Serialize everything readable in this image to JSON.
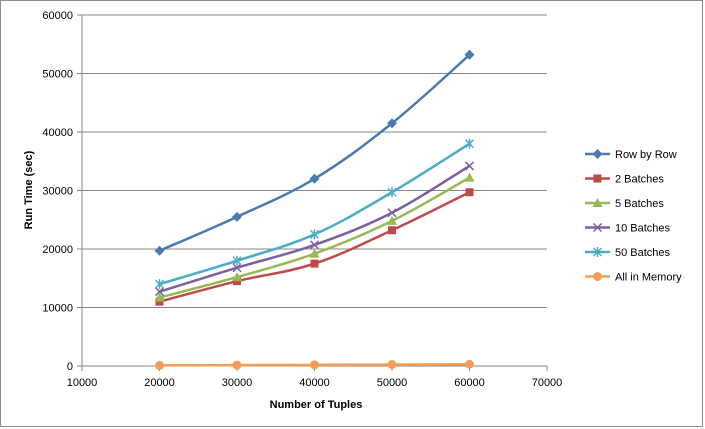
{
  "chart_data": {
    "type": "line",
    "title": "",
    "xlabel": "Number of Tuples",
    "ylabel": "Run Time (sec)",
    "xlim": [
      10000,
      70000
    ],
    "ylim": [
      0,
      60000
    ],
    "xticks": [
      10000,
      20000,
      30000,
      40000,
      50000,
      60000,
      70000
    ],
    "yticks": [
      0,
      10000,
      20000,
      30000,
      40000,
      50000,
      60000
    ],
    "grid": "horizontal",
    "legend_position": "right",
    "x": [
      20000,
      30000,
      40000,
      50000,
      60000
    ],
    "series": [
      {
        "name": "Row by Row",
        "color": "#4a7ab0",
        "marker": "diamond",
        "values": [
          19700,
          25500,
          32000,
          41500,
          53200
        ]
      },
      {
        "name": "2 Batches",
        "color": "#be4b48",
        "marker": "square",
        "values": [
          11000,
          14500,
          17500,
          23200,
          29700
        ]
      },
      {
        "name": "5 Batches",
        "color": "#98b954",
        "marker": "triangle",
        "values": [
          11700,
          15200,
          19200,
          24800,
          32200
        ]
      },
      {
        "name": "10 Batches",
        "color": "#7d5fa0",
        "marker": "x",
        "values": [
          12700,
          16800,
          20700,
          26200,
          34200
        ]
      },
      {
        "name": "50 Batches",
        "color": "#4bacc6",
        "marker": "star",
        "values": [
          14000,
          18000,
          22500,
          29700,
          38000
        ]
      },
      {
        "name": "All in Memory",
        "color": "#f59d56",
        "marker": "circle",
        "values": [
          100,
          150,
          200,
          250,
          300
        ]
      }
    ]
  }
}
